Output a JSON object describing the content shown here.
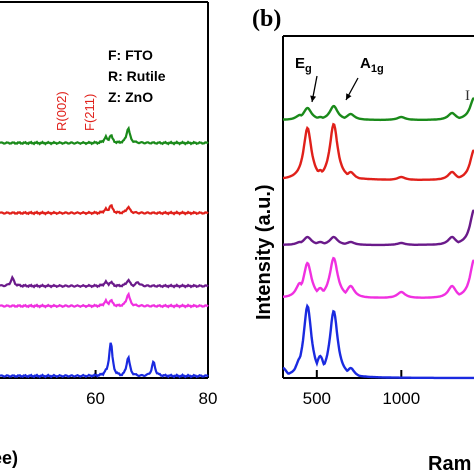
{
  "chart_data": [
    {
      "type": "line",
      "panel": "(a)",
      "xlabel_fragment": "ee)",
      "x_ticks": [
        60,
        80
      ],
      "xlim": [
        43,
        80
      ],
      "legend": [
        "F: FTO",
        "R: Rutile",
        "Z: ZnO"
      ],
      "annotations": [
        {
          "text": "R(002)",
          "x": 62.7
        },
        {
          "text": "F(211)",
          "x": 65.8
        }
      ],
      "series": [
        {
          "color": "#1a8a1a",
          "x": [
            43,
            61.8,
            62.7,
            65.8,
            80
          ],
          "y": [
            0,
            6,
            8,
            15,
            0
          ]
        },
        {
          "color": "#e0201a",
          "x": [
            43,
            61.8,
            62.7,
            65.8,
            80
          ],
          "y": [
            0,
            4,
            8,
            6,
            0
          ]
        },
        {
          "color": "#6a1a8a",
          "x": [
            43,
            45.2,
            61.8,
            62.7,
            65.8,
            67.5,
            80
          ],
          "y": [
            0,
            8,
            4,
            4,
            6,
            4,
            0
          ]
        },
        {
          "color": "#f030e0",
          "x": [
            43,
            61.8,
            62.7,
            65.8,
            80
          ],
          "y": [
            0,
            5,
            6,
            12,
            0
          ]
        },
        {
          "color": "#1a2ae0",
          "x": [
            43,
            61.8,
            62.7,
            65.8,
            70.3,
            80
          ],
          "y": [
            0,
            6,
            34,
            19,
            14,
            0
          ]
        }
      ]
    },
    {
      "type": "line",
      "panel": "(b)",
      "ylabel": "Intensity (a.u.)",
      "xlabel_fragment": "Ram",
      "x_ticks": [
        500,
        1000
      ],
      "xlim": [
        300,
        1430
      ],
      "annotations": [
        {
          "text": "E",
          "sub": "g",
          "x": 445
        },
        {
          "text": "A",
          "sub": "1g",
          "x": 600
        }
      ],
      "series": [
        {
          "color": "#1a8a1a",
          "x": [
            300,
            400,
            445,
            520,
            600,
            700,
            1000,
            1300,
            1430
          ],
          "y": [
            0,
            5,
            12,
            3,
            14,
            6,
            3,
            7,
            22
          ]
        },
        {
          "color": "#e0201a",
          "x": [
            300,
            400,
            445,
            520,
            600,
            700,
            1000,
            1300,
            1430
          ],
          "y": [
            0,
            8,
            52,
            10,
            56,
            8,
            3,
            8,
            30
          ]
        },
        {
          "color": "#6a1a8a",
          "x": [
            300,
            400,
            445,
            520,
            600,
            700,
            1000,
            1300,
            1430
          ],
          "y": [
            0,
            3,
            8,
            3,
            8,
            3,
            2,
            8,
            35
          ]
        },
        {
          "color": "#f030e0",
          "x": [
            300,
            400,
            445,
            520,
            600,
            700,
            1000,
            1300,
            1430
          ],
          "y": [
            0,
            15,
            35,
            10,
            40,
            12,
            6,
            12,
            38
          ]
        },
        {
          "color": "#1a2ae0",
          "x": [
            300,
            400,
            445,
            520,
            600,
            700,
            1000,
            1300,
            1430
          ],
          "y": [
            10,
            20,
            72,
            22,
            67,
            10,
            0,
            0,
            0
          ]
        }
      ]
    }
  ],
  "panel_b_label": "(b)",
  "corner_label": "I"
}
